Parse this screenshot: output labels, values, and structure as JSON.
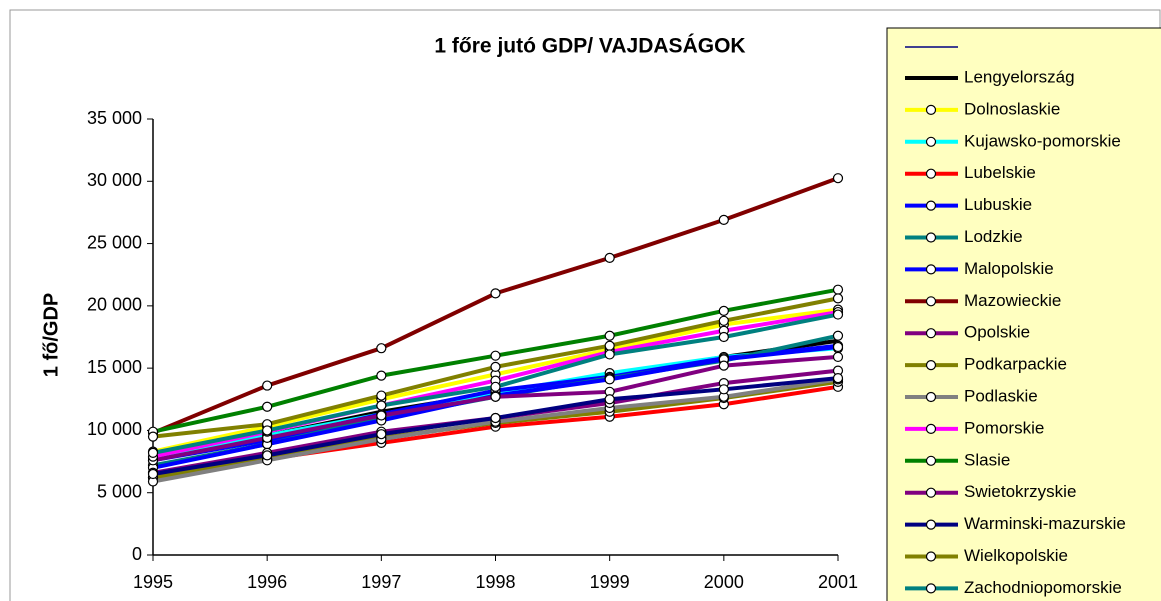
{
  "chart_data": {
    "type": "line",
    "title": "1 főre jutó GDP/ VAJDASÁGOK",
    "y_label": "1 fő/GDP",
    "categories": [
      "1995",
      "1996",
      "1997",
      "1998",
      "1999",
      "2000",
      "2001"
    ],
    "ylim": [
      0,
      35000
    ],
    "yticks": [
      0,
      {
        "value": 5000,
        "label": "5 000"
      },
      {
        "value": 10000,
        "label": "10 000"
      },
      {
        "value": 15000,
        "label": "15 000"
      },
      {
        "value": 20000,
        "label": "20 000"
      },
      {
        "value": 25000,
        "label": "25 000"
      },
      {
        "value": 30000,
        "label": "30 000"
      },
      {
        "value": 35000,
        "label": "35 000"
      }
    ],
    "grid": false,
    "legend": "right",
    "series": [
      {
        "name": "Lengyelország",
        "color": "#000000",
        "markers": false,
        "values": [
          7900,
          9600,
          11500,
          13000,
          14400,
          15900,
          17200
        ]
      },
      {
        "name": "Dolnoslaskie",
        "color": "#ffff00",
        "markers": true,
        "values": [
          8300,
          10300,
          12500,
          14500,
          16500,
          18500,
          19700
        ]
      },
      {
        "name": "Kujawsko-pomorskie",
        "color": "#00ffff",
        "markers": true,
        "values": [
          7800,
          9600,
          11300,
          13000,
          14600,
          15900,
          16600
        ]
      },
      {
        "name": "Lubelskie",
        "color": "#ff0000",
        "markers": true,
        "values": [
          6200,
          7700,
          9000,
          10300,
          11100,
          12100,
          13500
        ]
      },
      {
        "name": "Lubuskie",
        "color": "#0000ff",
        "markers": true,
        "values": [
          7600,
          9200,
          11300,
          13200,
          14300,
          15800,
          16800
        ]
      },
      {
        "name": "Lodzkie",
        "color": "#008080",
        "markers": true,
        "values": [
          7200,
          8900,
          11000,
          12700,
          14200,
          15600,
          17600
        ]
      },
      {
        "name": "Malopolskie",
        "color": "#0000ff",
        "markers": true,
        "values": [
          7000,
          8900,
          10800,
          12800,
          14100,
          15700,
          16700
        ]
      },
      {
        "name": "Mazowieckie",
        "color": "#800000",
        "markers": true,
        "values": [
          9800,
          13600,
          16600,
          21000,
          23850,
          26900,
          30250
        ]
      },
      {
        "name": "Opolskie",
        "color": "#800080",
        "markers": true,
        "values": [
          7600,
          9400,
          11200,
          12700,
          13100,
          15200,
          15900
        ]
      },
      {
        "name": "Podkarpackie",
        "color": "#808000",
        "markers": true,
        "values": [
          6200,
          7700,
          9400,
          10600,
          11500,
          12600,
          13900
        ]
      },
      {
        "name": "Podlaskie",
        "color": "#808080",
        "markers": true,
        "values": [
          5900,
          7600,
          9300,
          10700,
          11800,
          12700,
          14100
        ]
      },
      {
        "name": "Pomorskie",
        "color": "#ff00ff",
        "markers": true,
        "values": [
          7900,
          9900,
          12000,
          14000,
          16300,
          18000,
          19500
        ]
      },
      {
        "name": "Slasie",
        "color": "#008000",
        "markers": true,
        "values": [
          9900,
          11900,
          14400,
          16000,
          17600,
          19600,
          21300
        ]
      },
      {
        "name": "Swietokrzyskie",
        "color": "#800080",
        "markers": true,
        "values": [
          6600,
          8200,
          9900,
          11000,
          12200,
          13800,
          14800
        ]
      },
      {
        "name": "Warminski-mazurskie",
        "color": "#000080",
        "markers": true,
        "values": [
          6500,
          8000,
          9700,
          11000,
          12500,
          13300,
          14200
        ]
      },
      {
        "name": "Wielkopolskie",
        "color": "#808000",
        "markers": true,
        "values": [
          9500,
          10500,
          12800,
          15100,
          16800,
          18800,
          20600
        ]
      },
      {
        "name": "Zachodniopomorskie",
        "color": "#008080",
        "markers": true,
        "values": [
          8200,
          10000,
          12000,
          13500,
          16100,
          17500,
          19300
        ]
      }
    ]
  }
}
